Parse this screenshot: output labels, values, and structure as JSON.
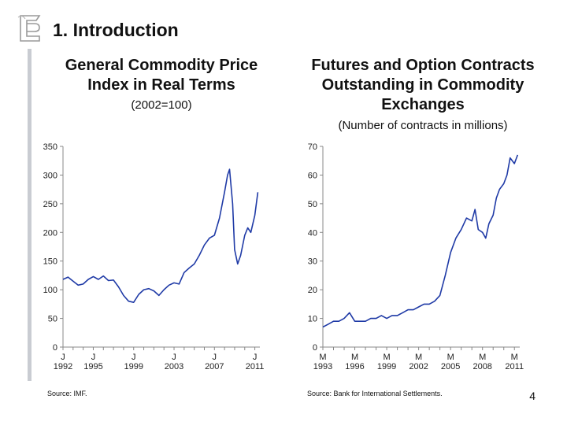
{
  "header": {
    "logo_label": "BdE logo",
    "title": "1. Introduction"
  },
  "colors": {
    "accent_bar": "#c9ccd2",
    "series_line": "#1f3aa6",
    "axis": "#888888"
  },
  "left_panel": {
    "title_line1": "General Commodity Price",
    "title_line2": "Index in Real Terms",
    "subtitle": "(2002=100)",
    "source": "Source: IMF."
  },
  "right_panel": {
    "title_line1": "Futures and Option Contracts",
    "title_line2": "Outstanding in Commodity",
    "title_line3": "Exchanges",
    "subtitle": "(Number of contracts in millions)",
    "source": "Source: Bank for International Settlements."
  },
  "page_number": "4",
  "chart_data": [
    {
      "type": "line",
      "title": "General Commodity Price Index in Real Terms",
      "subtitle": "(2002=100)",
      "ylim": [
        0,
        350
      ],
      "yticks": [
        0,
        50,
        100,
        150,
        200,
        250,
        300,
        350
      ],
      "xlim": [
        1992.0,
        2011.5
      ],
      "x_month_labels": [
        {
          "x": 1992.0,
          "label": "J"
        },
        {
          "x": 1995.0,
          "label": "J"
        },
        {
          "x": 1999.0,
          "label": "J"
        },
        {
          "x": 2003.0,
          "label": "J"
        },
        {
          "x": 2007.0,
          "label": "J"
        },
        {
          "x": 2011.0,
          "label": "J"
        }
      ],
      "x_year_labels": [
        {
          "x": 1992.0,
          "label": "1992"
        },
        {
          "x": 1995.0,
          "label": "1995"
        },
        {
          "x": 1999.0,
          "label": "1999"
        },
        {
          "x": 2003.0,
          "label": "2003"
        },
        {
          "x": 2007.0,
          "label": "2007"
        },
        {
          "x": 2011.0,
          "label": "2011"
        }
      ],
      "series": [
        {
          "name": "Commodity price index",
          "x": [
            1992.0,
            1992.5,
            1993.0,
            1993.5,
            1994.0,
            1994.5,
            1995.0,
            1995.5,
            1996.0,
            1996.5,
            1997.0,
            1997.5,
            1998.0,
            1998.5,
            1999.0,
            1999.5,
            2000.0,
            2000.5,
            2001.0,
            2001.5,
            2002.0,
            2002.5,
            2003.0,
            2003.5,
            2004.0,
            2004.5,
            2005.0,
            2005.5,
            2006.0,
            2006.5,
            2007.0,
            2007.5,
            2008.0,
            2008.3,
            2008.5,
            2008.8,
            2009.0,
            2009.3,
            2009.6,
            2010.0,
            2010.3,
            2010.6,
            2011.0,
            2011.3
          ],
          "values": [
            118,
            122,
            115,
            108,
            110,
            118,
            123,
            118,
            124,
            116,
            117,
            105,
            90,
            80,
            78,
            92,
            100,
            102,
            98,
            90,
            100,
            108,
            112,
            110,
            130,
            138,
            145,
            160,
            178,
            190,
            195,
            225,
            270,
            300,
            310,
            250,
            170,
            145,
            160,
            195,
            208,
            200,
            230,
            270
          ]
        }
      ]
    },
    {
      "type": "line",
      "title": "Futures and Option Contracts Outstanding in Commodity Exchanges",
      "subtitle": "(Number of contracts in millions)",
      "ylim": [
        0,
        70
      ],
      "yticks": [
        0,
        10,
        20,
        30,
        40,
        50,
        60,
        70
      ],
      "xlim": [
        1993.0,
        2011.5
      ],
      "x_month_labels": [
        {
          "x": 1993.0,
          "label": "M"
        },
        {
          "x": 1996.0,
          "label": "M"
        },
        {
          "x": 1999.0,
          "label": "M"
        },
        {
          "x": 2002.0,
          "label": "M"
        },
        {
          "x": 2005.0,
          "label": "M"
        },
        {
          "x": 2008.0,
          "label": "M"
        },
        {
          "x": 2011.0,
          "label": "M"
        }
      ],
      "x_year_labels": [
        {
          "x": 1993.0,
          "label": "1993"
        },
        {
          "x": 1996.0,
          "label": "1996"
        },
        {
          "x": 1999.0,
          "label": "1999"
        },
        {
          "x": 2002.0,
          "label": "2002"
        },
        {
          "x": 2005.0,
          "label": "2005"
        },
        {
          "x": 2008.0,
          "label": "2008"
        },
        {
          "x": 2011.0,
          "label": "2011"
        }
      ],
      "series": [
        {
          "name": "Contracts outstanding",
          "x": [
            1993.0,
            1993.5,
            1994.0,
            1994.5,
            1995.0,
            1995.5,
            1996.0,
            1996.5,
            1997.0,
            1997.5,
            1998.0,
            1998.5,
            1999.0,
            1999.5,
            2000.0,
            2000.5,
            2001.0,
            2001.5,
            2002.0,
            2002.5,
            2003.0,
            2003.5,
            2004.0,
            2004.5,
            2005.0,
            2005.5,
            2006.0,
            2006.5,
            2007.0,
            2007.3,
            2007.6,
            2008.0,
            2008.3,
            2008.6,
            2009.0,
            2009.3,
            2009.6,
            2010.0,
            2010.3,
            2010.6,
            2011.0,
            2011.3
          ],
          "values": [
            7,
            8,
            9,
            9,
            10,
            12,
            9,
            9,
            9,
            10,
            10,
            11,
            10,
            11,
            11,
            12,
            13,
            13,
            14,
            15,
            15,
            16,
            18,
            25,
            33,
            38,
            41,
            45,
            44,
            48,
            41,
            40,
            38,
            43,
            46,
            52,
            55,
            57,
            60,
            66,
            64,
            67
          ]
        }
      ]
    }
  ]
}
